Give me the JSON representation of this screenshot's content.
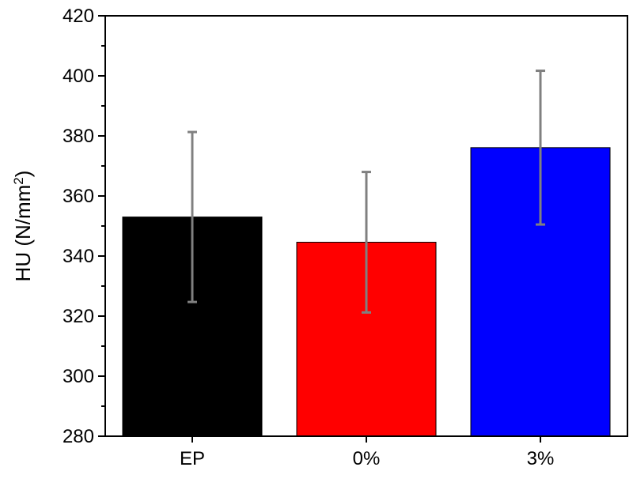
{
  "chart_data": {
    "type": "bar",
    "title": "",
    "xlabel": "",
    "ylabel": "HU (N/mm",
    "ylabel_superscript": "2",
    "ylabel_suffix": ")",
    "categories": [
      "EP",
      "0%",
      "3%"
    ],
    "values": [
      353,
      344.6,
      376.1
    ],
    "errors": [
      28.3,
      23.4,
      25.6
    ],
    "colors": [
      "#000000",
      "#ff0000",
      "#0000ff"
    ],
    "error_color": "#808080",
    "ylim": [
      280,
      420
    ],
    "yticks": [
      280,
      300,
      320,
      340,
      360,
      380,
      400,
      420
    ],
    "yminor_step": 10,
    "grid": false
  }
}
